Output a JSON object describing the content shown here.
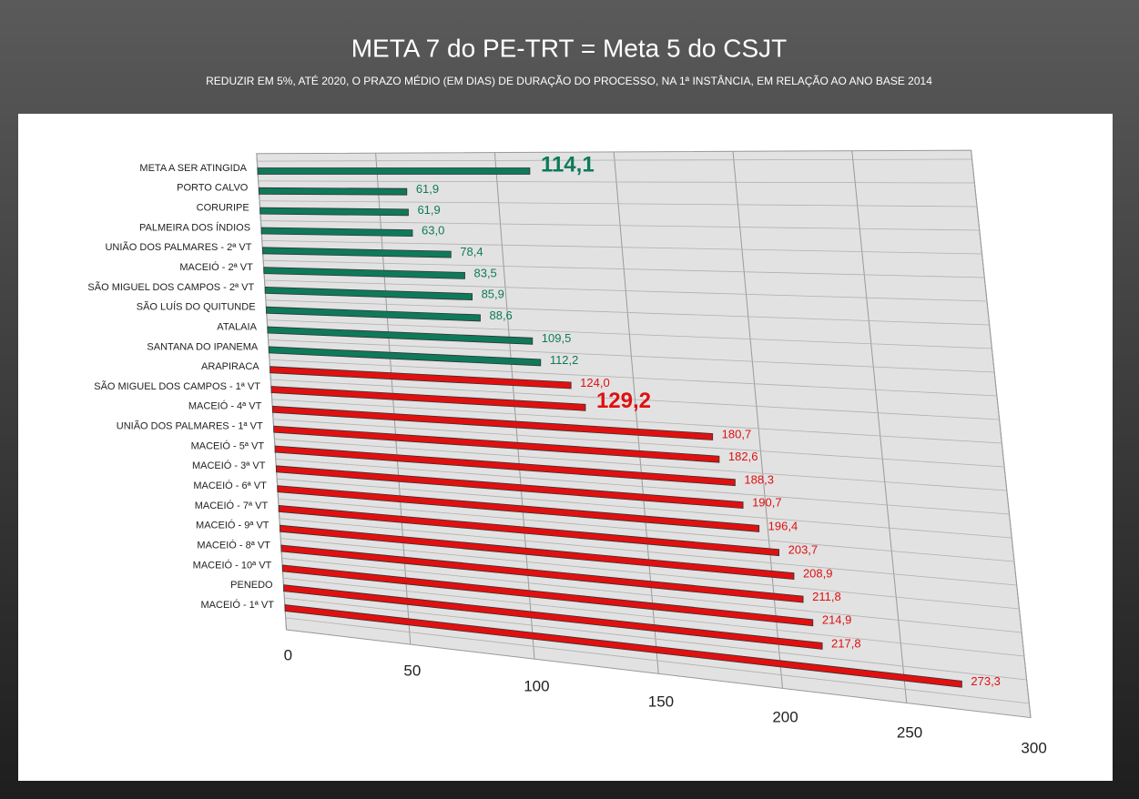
{
  "chart_data": {
    "type": "bar",
    "title": "META 7 do PE-TRT = Meta 5 do CSJT",
    "subtitle": "REDUZIR EM 5%, ATÉ 2020, O PRAZO MÉDIO (EM DIAS) DE DURAÇÃO DO PROCESSO, NA 1ª INSTÂNCIA, EM RELAÇÃO AO ANO BASE 2014",
    "categories": [
      "META A SER ATINGIDA",
      "PORTO CALVO",
      "CORURIPE",
      "PALMEIRA DOS ÍNDIOS",
      "UNIÃO DOS PALMARES - 2ª VT",
      "MACEIÓ - 2ª VT",
      "SÃO MIGUEL DOS CAMPOS - 2ª VT",
      "SÃO LUÍS DO QUITUNDE",
      "ATALAIA",
      "SANTANA DO IPANEMA",
      "ARAPIRACA",
      "SÃO MIGUEL DOS CAMPOS - 1ª VT",
      "MACEIÓ - 4ª VT",
      "UNIÃO DOS PALMARES - 1ª VT",
      "MACEIÓ - 5ª VT",
      "MACEIÓ - 3ª VT",
      "MACEIÓ - 6ª VT",
      "MACEIÓ - 7ª VT",
      "MACEIÓ - 9ª VT",
      "MACEIÓ - 8ª VT",
      "MACEIÓ - 10ª VT",
      "PENEDO",
      "MACEIÓ - 1ª VT"
    ],
    "values": [
      114.1,
      61.9,
      61.9,
      63.0,
      78.4,
      83.5,
      85.9,
      88.6,
      109.5,
      112.2,
      124.0,
      129.2,
      180.7,
      182.6,
      188.3,
      190.7,
      196.4,
      203.7,
      208.9,
      211.8,
      214.9,
      217.8,
      273.3
    ],
    "value_labels": [
      "114,1",
      "61,9",
      "61,9",
      "63,0",
      "78,4",
      "83,5",
      "85,9",
      "88,6",
      "109,5",
      "112,2",
      "124,0",
      "129,2",
      "180,7",
      "182,6",
      "188,3",
      "190,7",
      "196,4",
      "203,7",
      "208,9",
      "211,8",
      "214,9",
      "217,8",
      "273,3"
    ],
    "colors": [
      "#0e7a5a",
      "#0e7a5a",
      "#0e7a5a",
      "#0e7a5a",
      "#0e7a5a",
      "#0e7a5a",
      "#0e7a5a",
      "#0e7a5a",
      "#0e7a5a",
      "#0e7a5a",
      "#e01010",
      "#e01010",
      "#e01010",
      "#e01010",
      "#e01010",
      "#e01010",
      "#e01010",
      "#e01010",
      "#e01010",
      "#e01010",
      "#e01010",
      "#e01010",
      "#e01010"
    ],
    "highlight_indices": [
      0,
      11
    ],
    "xlim": [
      0,
      300
    ],
    "xticks": [
      0,
      50,
      100,
      150,
      200,
      250,
      300
    ],
    "grid": true
  }
}
